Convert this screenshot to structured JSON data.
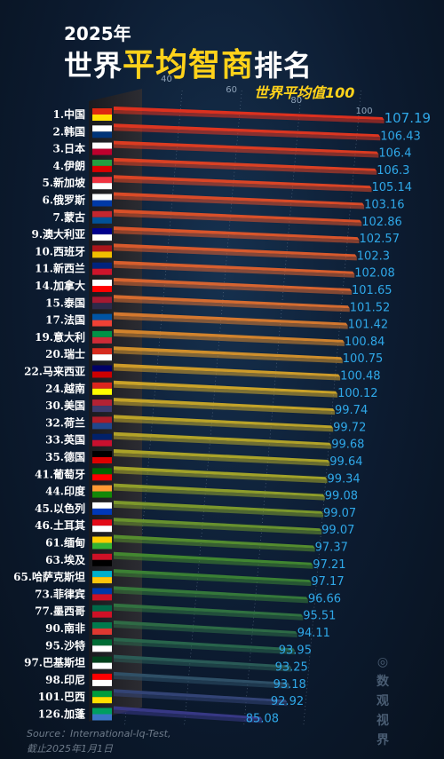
{
  "title": {
    "year": "2025年",
    "main_pre": "世界",
    "main_highlight": "平均智商",
    "main_post": "排名"
  },
  "subtitle": "世界平均值100",
  "source": {
    "line1": "Source：International-Iq-Test,",
    "line2": "截止2025年1月1日"
  },
  "watermark": "◎数观视界",
  "chart_data": {
    "type": "bar",
    "orientation": "horizontal",
    "title": "2025年世界平均智商排名",
    "subtitle": "世界平均值100",
    "axis_ticks": [
      40,
      60,
      80,
      100
    ],
    "grid": true,
    "categories": [
      "1.中国",
      "2.韩国",
      "3.日本",
      "4.伊朗",
      "5.新加坡",
      "6.俄罗斯",
      "7.蒙古",
      "9.澳大利亚",
      "10.西班牙",
      "11.新西兰",
      "14.加拿大",
      "15.泰国",
      "17.法国",
      "19.意大利",
      "20.瑞士",
      "22.马来西亚",
      "24.越南",
      "30.美国",
      "32.荷兰",
      "33.英国",
      "35.德国",
      "41.葡萄牙",
      "44.印度",
      "45.以色列",
      "46.土耳其",
      "61.缅甸",
      "63.埃及",
      "65.哈萨克斯坦",
      "73.菲律宾",
      "77.墨西哥",
      "90.南非",
      "95.沙特",
      "97.巴基斯坦",
      "98.印尼",
      "101.巴西",
      "126.加蓬"
    ],
    "values": [
      107.19,
      106.43,
      106.4,
      106.3,
      105.14,
      103.16,
      102.86,
      102.57,
      102.3,
      102.08,
      101.65,
      101.52,
      101.42,
      100.84,
      100.75,
      100.48,
      100.12,
      99.74,
      99.72,
      99.68,
      99.64,
      99.34,
      99.08,
      99.07,
      99.07,
      97.37,
      97.21,
      97.17,
      96.66,
      95.51,
      94.11,
      93.95,
      93.25,
      93.18,
      92.92,
      85.08
    ],
    "value_labels": [
      "107.19",
      "106.43",
      "106.4",
      "106.3",
      "105.14",
      "103.16",
      "102.86",
      "102.57",
      "102.3",
      "102.08",
      "101.65",
      "101.52",
      "101.42",
      "100.84",
      "100.75",
      "100.48",
      "100.12",
      "99.74",
      "99.72",
      "99.68",
      "99.64",
      "99.34",
      "99.08",
      "99.07",
      "99.07",
      "97.37",
      "97.21",
      "97.17",
      "96.66",
      "95.51",
      "94.11",
      "93.95",
      "93.25",
      "93.18",
      "92.92",
      "85.08"
    ],
    "colors": {
      "top": "#e8321e",
      "upper": "#e06a30",
      "middle": "#d8b020",
      "lower": "#3f8a30",
      "bottom": "#3a3a8a",
      "value_label": "#2fa8e8"
    }
  }
}
